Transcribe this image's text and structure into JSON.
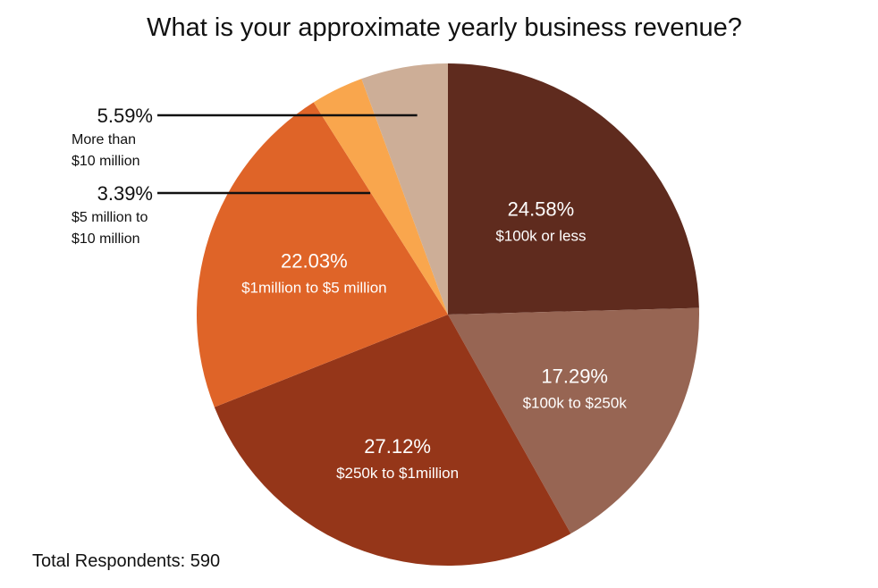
{
  "chart_data": {
    "type": "pie",
    "title": "What is your approximate yearly business revenue?",
    "footer": "Total Respondents: 590",
    "slices": [
      {
        "label": "$100k or less",
        "value": 24.58,
        "value_label": "24.58%",
        "color": "#5f2b1e"
      },
      {
        "label": "$100k to $250k",
        "value": 17.29,
        "value_label": "17.29%",
        "color": "#976553"
      },
      {
        "label": "$250k to $1million",
        "value": 27.12,
        "value_label": "27.12%",
        "color": "#953619"
      },
      {
        "label": "$1million to $5 million",
        "value": 22.03,
        "value_label": "22.03%",
        "color": "#df6428"
      },
      {
        "label_lines": [
          "$5 million to",
          "$10 million"
        ],
        "value": 3.39,
        "value_label": "3.39%",
        "color": "#f9a64d"
      },
      {
        "label_lines": [
          "More than",
          "$10 million"
        ],
        "value": 5.59,
        "value_label": "5.59%",
        "color": "#cdae97"
      }
    ]
  }
}
